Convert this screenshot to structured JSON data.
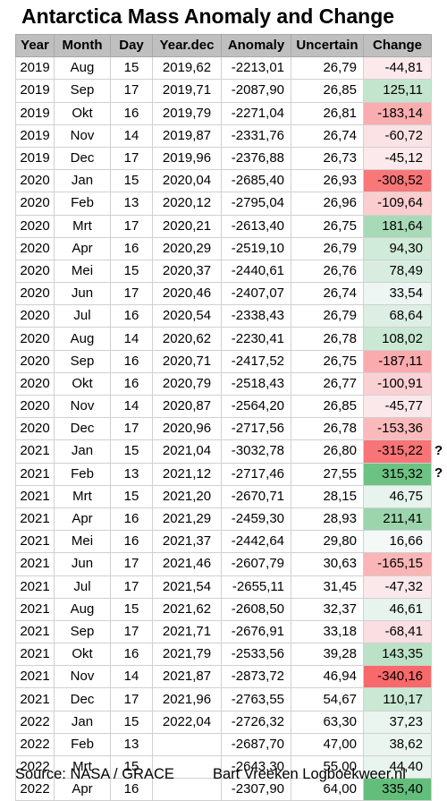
{
  "title": "Antarctica Mass Anomaly and Change",
  "headers": [
    "Year",
    "Month",
    "Day",
    "Year.dec",
    "Anomaly",
    "Uncertain",
    "Change"
  ],
  "rows": [
    {
      "year": "2019",
      "month": "Aug",
      "day": "15",
      "yeardec": "2019,62",
      "anomaly": "-2213,01",
      "uncertain": "26,79",
      "change": "-44,81"
    },
    {
      "year": "2019",
      "month": "Sep",
      "day": "17",
      "yeardec": "2019,71",
      "anomaly": "-2087,90",
      "uncertain": "26,85",
      "change": "125,11"
    },
    {
      "year": "2019",
      "month": "Okt",
      "day": "16",
      "yeardec": "2019,79",
      "anomaly": "-2271,04",
      "uncertain": "26,81",
      "change": "-183,14"
    },
    {
      "year": "2019",
      "month": "Nov",
      "day": "14",
      "yeardec": "2019,87",
      "anomaly": "-2331,76",
      "uncertain": "26,74",
      "change": "-60,72"
    },
    {
      "year": "2019",
      "month": "Dec",
      "day": "17",
      "yeardec": "2019,96",
      "anomaly": "-2376,88",
      "uncertain": "26,73",
      "change": "-45,12"
    },
    {
      "year": "2020",
      "month": "Jan",
      "day": "15",
      "yeardec": "2020,04",
      "anomaly": "-2685,40",
      "uncertain": "26,93",
      "change": "-308,52"
    },
    {
      "year": "2020",
      "month": "Feb",
      "day": "13",
      "yeardec": "2020,12",
      "anomaly": "-2795,04",
      "uncertain": "26,96",
      "change": "-109,64"
    },
    {
      "year": "2020",
      "month": "Mrt",
      "day": "17",
      "yeardec": "2020,21",
      "anomaly": "-2613,40",
      "uncertain": "26,75",
      "change": "181,64"
    },
    {
      "year": "2020",
      "month": "Apr",
      "day": "16",
      "yeardec": "2020,29",
      "anomaly": "-2519,10",
      "uncertain": "26,79",
      "change": "94,30"
    },
    {
      "year": "2020",
      "month": "Mei",
      "day": "15",
      "yeardec": "2020,37",
      "anomaly": "-2440,61",
      "uncertain": "26,76",
      "change": "78,49"
    },
    {
      "year": "2020",
      "month": "Jun",
      "day": "17",
      "yeardec": "2020,46",
      "anomaly": "-2407,07",
      "uncertain": "26,74",
      "change": "33,54"
    },
    {
      "year": "2020",
      "month": "Jul",
      "day": "16",
      "yeardec": "2020,54",
      "anomaly": "-2338,43",
      "uncertain": "26,79",
      "change": "68,64"
    },
    {
      "year": "2020",
      "month": "Aug",
      "day": "14",
      "yeardec": "2020,62",
      "anomaly": "-2230,41",
      "uncertain": "26,78",
      "change": "108,02"
    },
    {
      "year": "2020",
      "month": "Sep",
      "day": "16",
      "yeardec": "2020,71",
      "anomaly": "-2417,52",
      "uncertain": "26,75",
      "change": "-187,11"
    },
    {
      "year": "2020",
      "month": "Okt",
      "day": "16",
      "yeardec": "2020,79",
      "anomaly": "-2518,43",
      "uncertain": "26,77",
      "change": "-100,91"
    },
    {
      "year": "2020",
      "month": "Nov",
      "day": "14",
      "yeardec": "2020,87",
      "anomaly": "-2564,20",
      "uncertain": "26,85",
      "change": "-45,77"
    },
    {
      "year": "2020",
      "month": "Dec",
      "day": "17",
      "yeardec": "2020,96",
      "anomaly": "-2717,56",
      "uncertain": "26,78",
      "change": "-153,36"
    },
    {
      "year": "2021",
      "month": "Jan",
      "day": "15",
      "yeardec": "2021,04",
      "anomaly": "-3032,78",
      "uncertain": "26,80",
      "change": "-315,22",
      "note": "?"
    },
    {
      "year": "2021",
      "month": "Feb",
      "day": "13",
      "yeardec": "2021,12",
      "anomaly": "-2717,46",
      "uncertain": "27,55",
      "change": "315,32",
      "note": "?"
    },
    {
      "year": "2021",
      "month": "Mrt",
      "day": "15",
      "yeardec": "2021,20",
      "anomaly": "-2670,71",
      "uncertain": "28,15",
      "change": "46,75"
    },
    {
      "year": "2021",
      "month": "Apr",
      "day": "16",
      "yeardec": "2021,29",
      "anomaly": "-2459,30",
      "uncertain": "28,93",
      "change": "211,41"
    },
    {
      "year": "2021",
      "month": "Mei",
      "day": "16",
      "yeardec": "2021,37",
      "anomaly": "-2442,64",
      "uncertain": "29,80",
      "change": "16,66"
    },
    {
      "year": "2021",
      "month": "Jun",
      "day": "17",
      "yeardec": "2021,46",
      "anomaly": "-2607,79",
      "uncertain": "30,63",
      "change": "-165,15"
    },
    {
      "year": "2021",
      "month": "Jul",
      "day": "17",
      "yeardec": "2021,54",
      "anomaly": "-2655,11",
      "uncertain": "31,45",
      "change": "-47,32"
    },
    {
      "year": "2021",
      "month": "Aug",
      "day": "15",
      "yeardec": "2021,62",
      "anomaly": "-2608,50",
      "uncertain": "32,37",
      "change": "46,61"
    },
    {
      "year": "2021",
      "month": "Sep",
      "day": "17",
      "yeardec": "2021,71",
      "anomaly": "-2676,91",
      "uncertain": "33,18",
      "change": "-68,41"
    },
    {
      "year": "2021",
      "month": "Okt",
      "day": "16",
      "yeardec": "2021,79",
      "anomaly": "-2533,56",
      "uncertain": "39,28",
      "change": "143,35"
    },
    {
      "year": "2021",
      "month": "Nov",
      "day": "14",
      "yeardec": "2021,87",
      "anomaly": "-2873,72",
      "uncertain": "46,94",
      "change": "-340,16"
    },
    {
      "year": "2021",
      "month": "Dec",
      "day": "17",
      "yeardec": "2021,96",
      "anomaly": "-2763,55",
      "uncertain": "54,67",
      "change": "110,17"
    },
    {
      "year": "2022",
      "month": "Jan",
      "day": "15",
      "yeardec": "2022,04",
      "anomaly": "-2726,32",
      "uncertain": "63,30",
      "change": "37,23"
    },
    {
      "year": "2022",
      "month": "Feb",
      "day": "13",
      "yeardec": "",
      "anomaly": "-2687,70",
      "uncertain": "47,00",
      "change": "38,62"
    },
    {
      "year": "2022",
      "month": "Mrt",
      "day": "15",
      "yeardec": "",
      "anomaly": "-2643,30",
      "uncertain": "55,00",
      "change": "44,40"
    },
    {
      "year": "2022",
      "month": "Apr",
      "day": "16",
      "yeardec": "",
      "anomaly": "-2307,90",
      "uncertain": "64,00",
      "change": "335,40"
    }
  ],
  "colors": {
    "positive_max": "#63be7b",
    "negative_max": "#f8696b",
    "neutral": "#fcfcff",
    "header_bg": "#bfbfbf"
  },
  "footer": {
    "source": "Source: NASA / GRACE",
    "credit": "Bart Vreeken Logboekweer.nl"
  }
}
